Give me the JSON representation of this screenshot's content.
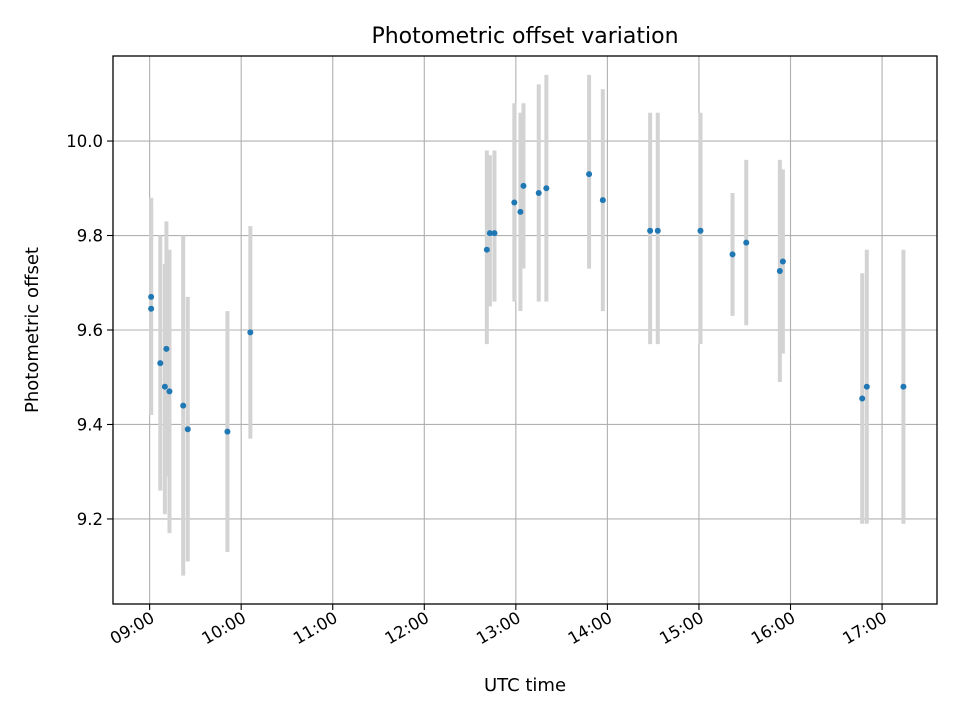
{
  "chart_data": {
    "type": "scatter",
    "title": "Photometric offset variation",
    "xlabel": "UTC time",
    "ylabel": "Photometric offset",
    "xlim": [
      "08:36",
      "17:36"
    ],
    "ylim": [
      9.02,
      10.18
    ],
    "x_ticks": [
      "09:00",
      "10:00",
      "11:00",
      "12:00",
      "13:00",
      "14:00",
      "15:00",
      "16:00",
      "17:00"
    ],
    "y_ticks": [
      "9.2",
      "9.4",
      "9.6",
      "9.8",
      "10.0"
    ],
    "grid": true,
    "colors": {
      "points": "#1f77b4",
      "error_bars": "#d3d3d3",
      "grid": "#b0b0b0"
    },
    "points": [
      {
        "x": "09:01",
        "y": 9.67,
        "yerr_low": 9.42,
        "yerr_high": 9.88
      },
      {
        "x": "09:01",
        "y": 9.645,
        "yerr_low": 9.42,
        "yerr_high": 9.87
      },
      {
        "x": "09:07",
        "y": 9.53,
        "yerr_low": 9.26,
        "yerr_high": 9.8
      },
      {
        "x": "09:10",
        "y": 9.48,
        "yerr_low": 9.21,
        "yerr_high": 9.74
      },
      {
        "x": "09:11",
        "y": 9.56,
        "yerr_low": 9.29,
        "yerr_high": 9.83
      },
      {
        "x": "09:13",
        "y": 9.47,
        "yerr_low": 9.17,
        "yerr_high": 9.77
      },
      {
        "x": "09:22",
        "y": 9.44,
        "yerr_low": 9.08,
        "yerr_high": 9.8
      },
      {
        "x": "09:25",
        "y": 9.39,
        "yerr_low": 9.11,
        "yerr_high": 9.67
      },
      {
        "x": "09:51",
        "y": 9.385,
        "yerr_low": 9.13,
        "yerr_high": 9.64
      },
      {
        "x": "10:06",
        "y": 9.595,
        "yerr_low": 9.37,
        "yerr_high": 9.82
      },
      {
        "x": "12:41",
        "y": 9.77,
        "yerr_low": 9.57,
        "yerr_high": 9.98
      },
      {
        "x": "12:43",
        "y": 9.805,
        "yerr_low": 9.65,
        "yerr_high": 9.97
      },
      {
        "x": "12:46",
        "y": 9.805,
        "yerr_low": 9.66,
        "yerr_high": 9.98
      },
      {
        "x": "12:59",
        "y": 9.87,
        "yerr_low": 9.66,
        "yerr_high": 10.08
      },
      {
        "x": "13:03",
        "y": 9.85,
        "yerr_low": 9.64,
        "yerr_high": 10.06
      },
      {
        "x": "13:05",
        "y": 9.905,
        "yerr_low": 9.73,
        "yerr_high": 10.08
      },
      {
        "x": "13:15",
        "y": 9.89,
        "yerr_low": 9.66,
        "yerr_high": 10.12
      },
      {
        "x": "13:20",
        "y": 9.9,
        "yerr_low": 9.66,
        "yerr_high": 10.14
      },
      {
        "x": "13:48",
        "y": 9.93,
        "yerr_low": 9.73,
        "yerr_high": 10.14
      },
      {
        "x": "13:57",
        "y": 9.875,
        "yerr_low": 9.64,
        "yerr_high": 10.11
      },
      {
        "x": "14:28",
        "y": 9.81,
        "yerr_low": 9.57,
        "yerr_high": 10.06
      },
      {
        "x": "14:33",
        "y": 9.81,
        "yerr_low": 9.57,
        "yerr_high": 10.06
      },
      {
        "x": "15:01",
        "y": 9.81,
        "yerr_low": 9.57,
        "yerr_high": 10.06
      },
      {
        "x": "15:22",
        "y": 9.76,
        "yerr_low": 9.63,
        "yerr_high": 9.89
      },
      {
        "x": "15:31",
        "y": 9.785,
        "yerr_low": 9.61,
        "yerr_high": 9.96
      },
      {
        "x": "15:53",
        "y": 9.725,
        "yerr_low": 9.49,
        "yerr_high": 9.96
      },
      {
        "x": "15:55",
        "y": 9.745,
        "yerr_low": 9.55,
        "yerr_high": 9.94
      },
      {
        "x": "16:47",
        "y": 9.455,
        "yerr_low": 9.19,
        "yerr_high": 9.72
      },
      {
        "x": "16:50",
        "y": 9.48,
        "yerr_low": 9.19,
        "yerr_high": 9.77
      },
      {
        "x": "17:14",
        "y": 9.48,
        "yerr_low": 9.19,
        "yerr_high": 9.77
      }
    ]
  }
}
